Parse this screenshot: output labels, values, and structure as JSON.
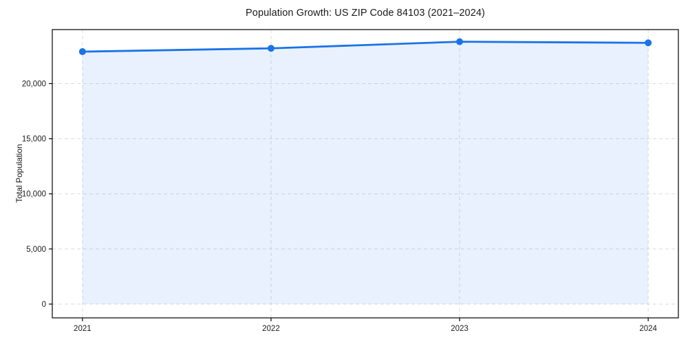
{
  "chart_data": {
    "type": "area",
    "title": "Population Growth: US ZIP Code 84103 (2021–2024)",
    "xlabel": "",
    "ylabel": "Total Population",
    "x": [
      2021,
      2022,
      2023,
      2024
    ],
    "xtick_labels": [
      "2021",
      "2022",
      "2023",
      "2024"
    ],
    "series": [
      {
        "name": "Total Population",
        "values": [
          22900,
          23200,
          23800,
          23700
        ]
      }
    ],
    "xlim": [
      2020.84,
      2024.16
    ],
    "ylim": [
      -1250,
      24900
    ],
    "yticks": [
      {
        "value": 0,
        "label": "0"
      },
      {
        "value": 5000,
        "label": "5,000"
      },
      {
        "value": 10000,
        "label": "10,000"
      },
      {
        "value": 15000,
        "label": "15,000"
      },
      {
        "value": 20000,
        "label": "20,000"
      }
    ],
    "grid": true,
    "grid_style": "dashed",
    "legend_position": "none",
    "marker": "circle",
    "colors": {
      "line": "#1a73e8",
      "fill": "rgba(26,115,232,0.10)",
      "grid": "#dbdbdb",
      "spine": "#000000",
      "text": "#1a1a1a",
      "background": "#ffffff"
    }
  }
}
